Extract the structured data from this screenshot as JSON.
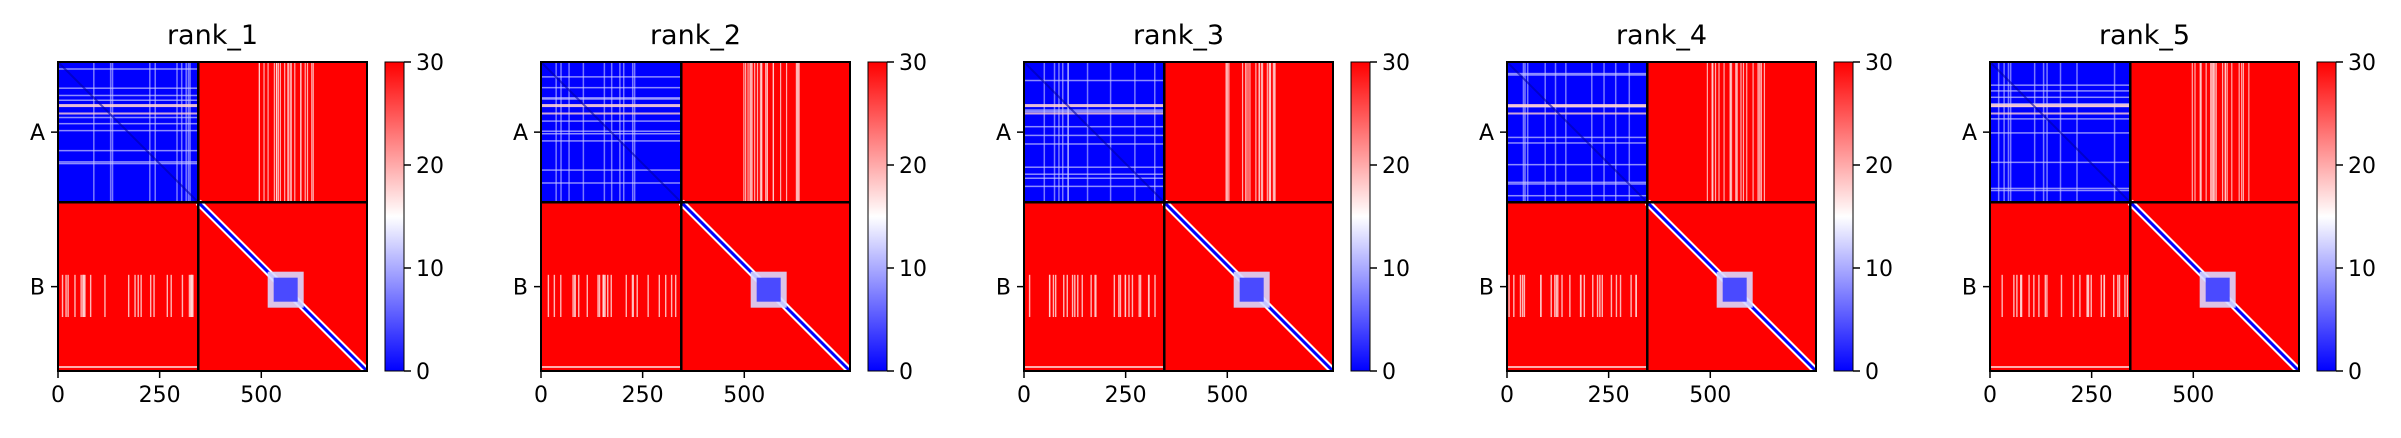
{
  "chart_data": [
    {
      "type": "heatmap",
      "title": "rank_1",
      "x_ticks": [
        0,
        250,
        500
      ],
      "x_range": [
        0,
        760
      ],
      "y_tick_labels": [
        "A",
        "B"
      ],
      "chains": [
        {
          "name": "A",
          "length": 345
        },
        {
          "name": "B",
          "length": 415
        }
      ],
      "colorbar": {
        "min": 0,
        "max": 30,
        "ticks": [
          0,
          10,
          20,
          30
        ],
        "colormap": "bwr"
      },
      "blocks": {
        "AA": "low",
        "AB": "high",
        "BA": "high",
        "BB": "high with low diagonal"
      },
      "stripe_seed": 3
    },
    {
      "type": "heatmap",
      "title": "rank_2",
      "x_ticks": [
        0,
        250,
        500
      ],
      "x_range": [
        0,
        760
      ],
      "y_tick_labels": [
        "A",
        "B"
      ],
      "chains": [
        {
          "name": "A",
          "length": 345
        },
        {
          "name": "B",
          "length": 415
        }
      ],
      "colorbar": {
        "min": 0,
        "max": 30,
        "ticks": [
          0,
          10,
          20,
          30
        ],
        "colormap": "bwr"
      },
      "blocks": {
        "AA": "low",
        "AB": "high",
        "BA": "high",
        "BB": "high with low diagonal"
      },
      "stripe_seed": 7
    },
    {
      "type": "heatmap",
      "title": "rank_3",
      "x_ticks": [
        0,
        250,
        500
      ],
      "x_range": [
        0,
        760
      ],
      "y_tick_labels": [
        "A",
        "B"
      ],
      "chains": [
        {
          "name": "A",
          "length": 345
        },
        {
          "name": "B",
          "length": 415
        }
      ],
      "colorbar": {
        "min": 0,
        "max": 30,
        "ticks": [
          0,
          10,
          20,
          30
        ],
        "colormap": "bwr"
      },
      "blocks": {
        "AA": "low",
        "AB": "high",
        "BA": "high",
        "BB": "high with low diagonal"
      },
      "stripe_seed": 11
    },
    {
      "type": "heatmap",
      "title": "rank_4",
      "x_ticks": [
        0,
        250,
        500
      ],
      "x_range": [
        0,
        760
      ],
      "y_tick_labels": [
        "A",
        "B"
      ],
      "chains": [
        {
          "name": "A",
          "length": 345
        },
        {
          "name": "B",
          "length": 415
        }
      ],
      "colorbar": {
        "min": 0,
        "max": 30,
        "ticks": [
          0,
          10,
          20,
          30
        ],
        "colormap": "bwr"
      },
      "blocks": {
        "AA": "low",
        "AB": "high",
        "BA": "high",
        "BB": "high with low diagonal"
      },
      "stripe_seed": 13
    },
    {
      "type": "heatmap",
      "title": "rank_5",
      "x_ticks": [
        0,
        250,
        500
      ],
      "x_range": [
        0,
        760
      ],
      "y_tick_labels": [
        "A",
        "B"
      ],
      "chains": [
        {
          "name": "A",
          "length": 345
        },
        {
          "name": "B",
          "length": 415
        }
      ],
      "colorbar": {
        "min": 0,
        "max": 30,
        "ticks": [
          0,
          10,
          20,
          30
        ],
        "colormap": "bwr"
      },
      "blocks": {
        "AA": "low",
        "AB": "high",
        "BA": "high",
        "BB": "high with low diagonal"
      },
      "stripe_seed": 17
    }
  ],
  "colors": {
    "low": "#0000ff",
    "mid": "#ffffff",
    "high": "#ff0000",
    "frame": "#000000"
  }
}
